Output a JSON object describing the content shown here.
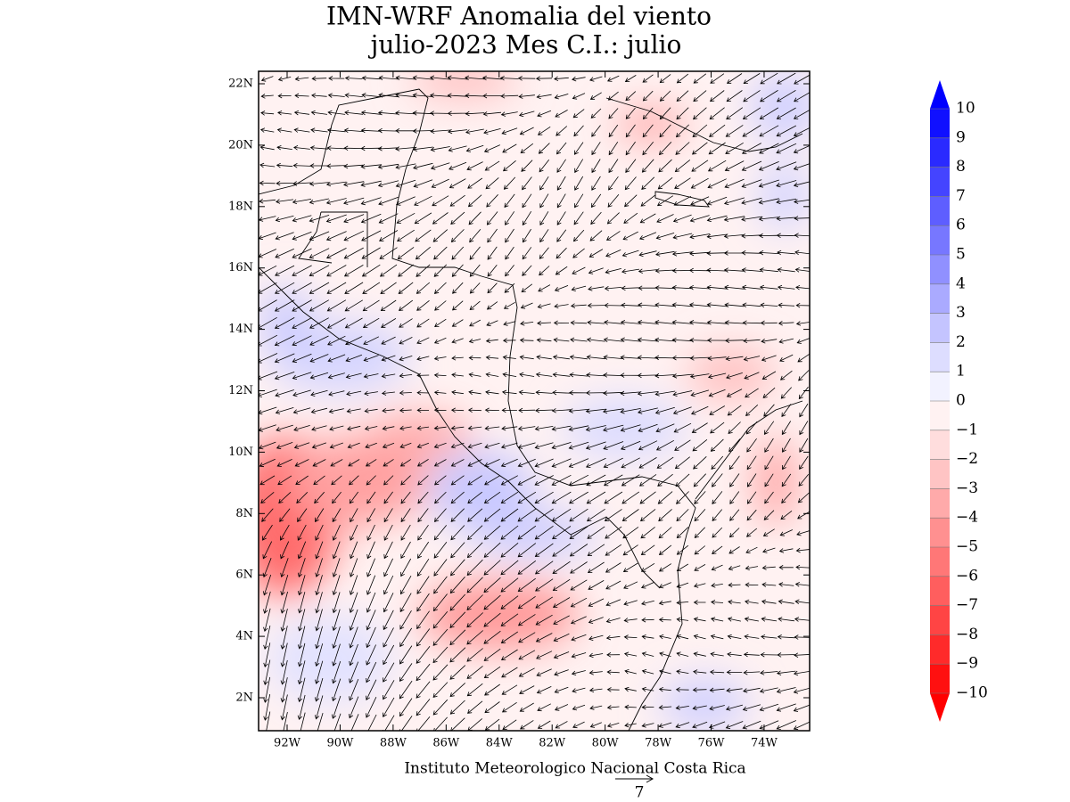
{
  "map": {
    "title": [
      "IMN-WRF Anomalia del viento",
      "julio-2023 Mes C.I.: julio"
    ],
    "lat_ticks": [
      {
        "value": 22,
        "label": "22N"
      },
      {
        "value": 20,
        "label": "20N"
      },
      {
        "value": 18,
        "label": "18N"
      },
      {
        "value": 16,
        "label": "16N"
      },
      {
        "value": 14,
        "label": "14N"
      },
      {
        "value": 12,
        "label": "12N"
      },
      {
        "value": 10,
        "label": "10N"
      },
      {
        "value": 8,
        "label": "8N"
      },
      {
        "value": 6,
        "label": "6N"
      },
      {
        "value": 4,
        "label": "4N"
      },
      {
        "value": 2,
        "label": "2N"
      }
    ],
    "lon_ticks": [
      {
        "value": -92,
        "label": "92W"
      },
      {
        "value": -90,
        "label": "90W"
      },
      {
        "value": -88,
        "label": "88W"
      },
      {
        "value": -86,
        "label": "86W"
      },
      {
        "value": -84,
        "label": "84W"
      },
      {
        "value": -82,
        "label": "82W"
      },
      {
        "value": -80,
        "label": "80W"
      },
      {
        "value": -78,
        "label": "78W"
      },
      {
        "value": -76,
        "label": "76W"
      },
      {
        "value": -74,
        "label": "74W"
      }
    ],
    "colorbar": {
      "ticks": [
        10,
        9,
        8,
        7,
        6,
        5,
        4,
        3,
        2,
        1,
        0,
        {
          "value": -1,
          "label": "−1"
        },
        {
          "value": -2,
          "label": "−2"
        },
        {
          "value": -3,
          "label": "−3"
        },
        {
          "value": -4,
          "label": "−4"
        },
        {
          "value": -5,
          "label": "−5"
        },
        {
          "value": -6,
          "label": "−6"
        },
        {
          "value": -7,
          "label": "−7"
        },
        {
          "value": -8,
          "label": "−8"
        },
        {
          "value": -9,
          "label": "−9"
        },
        {
          "value": -10,
          "label": "−10"
        }
      ],
      "colors": [
        "#ff1010",
        "#ff2a2a",
        "#ff4444",
        "#ff5e5e",
        "#ff7777",
        "#ff9090",
        "#ffaaaa",
        "#ffc4c4",
        "#ffdddd",
        "#fff2f2",
        "#f2f2ff",
        "#ddddff",
        "#c4c4ff",
        "#aaaaff",
        "#9090ff",
        "#7777ff",
        "#5e5eff",
        "#4444ff",
        "#2a2aff",
        "#1010ff"
      ],
      "low_color": "#ff0000",
      "high_color": "#0000ff"
    },
    "footer": "Instituto Meteorologico Nacional Costa Rica",
    "reference_vector": "7"
  }
}
